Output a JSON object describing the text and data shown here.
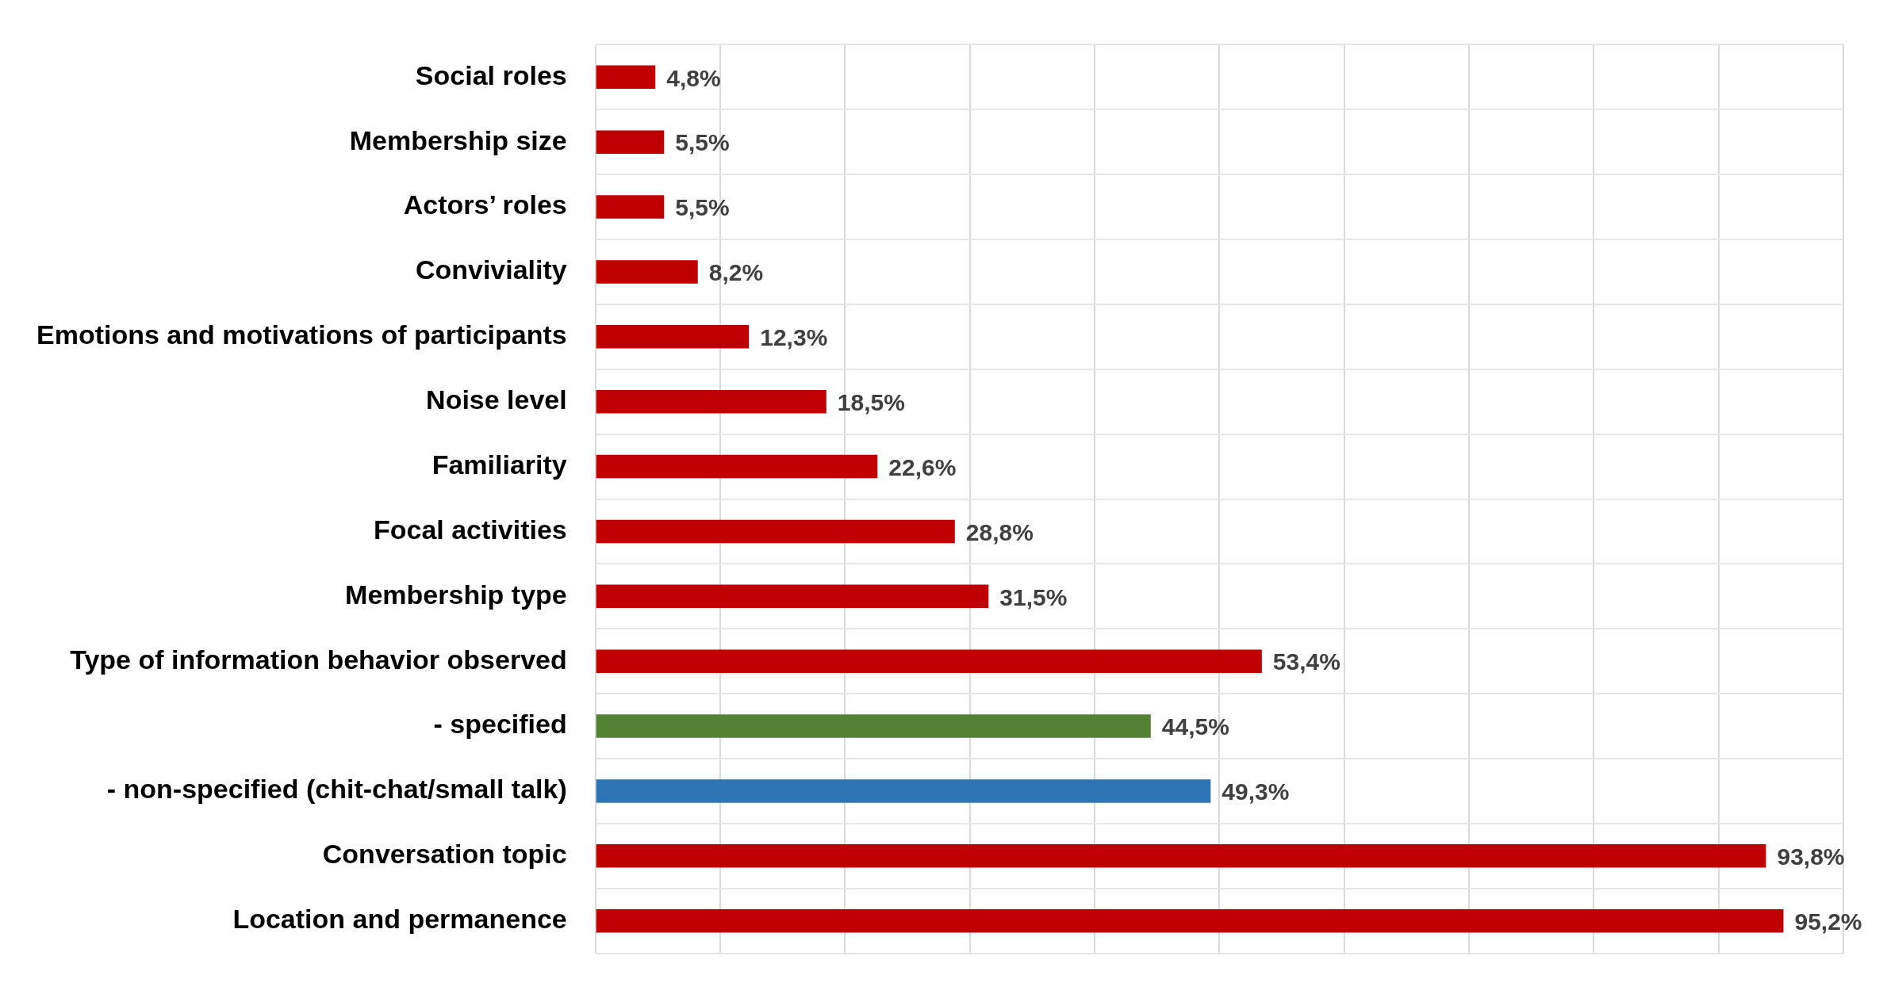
{
  "chart_data": {
    "type": "bar",
    "orientation": "horizontal",
    "categories": [
      "Social roles",
      "Membership size",
      "Actors’ roles",
      "Conviviality",
      "Emotions and motivations of participants",
      "Noise level",
      "Familiarity",
      "Focal activities",
      "Membership type",
      "Type of information behavior observed",
      "- specified",
      "- non-specified (chit-chat/small talk)",
      "Conversation topic",
      "Location and permanence"
    ],
    "values": [
      4.8,
      5.5,
      5.5,
      8.2,
      12.3,
      18.5,
      22.6,
      28.8,
      31.5,
      53.4,
      44.5,
      49.3,
      93.8,
      95.2
    ],
    "value_labels": [
      "4,8%",
      "5,5%",
      "5,5%",
      "8,2%",
      "12,3%",
      "18,5%",
      "22,6%",
      "28,8%",
      "31,5%",
      "53,4%",
      "44,5%",
      "49,3%",
      "93,8%",
      "95,2%"
    ],
    "colors": [
      "#c00000",
      "#c00000",
      "#c00000",
      "#c00000",
      "#c00000",
      "#c00000",
      "#c00000",
      "#c00000",
      "#c00000",
      "#c00000",
      "#548235",
      "#2e75b6",
      "#c00000",
      "#c00000"
    ],
    "xlim": [
      0,
      100
    ],
    "xticks": [
      {
        "value": 0,
        "label": null
      },
      {
        "value": 10,
        "label": null
      },
      {
        "value": 20,
        "label": null
      },
      {
        "value": 30,
        "label": null
      },
      {
        "value": 40,
        "label": null
      },
      {
        "value": 50,
        "label": null
      },
      {
        "value": 60,
        "label": null
      },
      {
        "value": 70,
        "label": null
      },
      {
        "value": 80,
        "label": null
      },
      {
        "value": 90,
        "label": null
      },
      {
        "value": 100,
        "label": null
      }
    ],
    "tick_labels": "y",
    "grid": true,
    "legend": false
  }
}
